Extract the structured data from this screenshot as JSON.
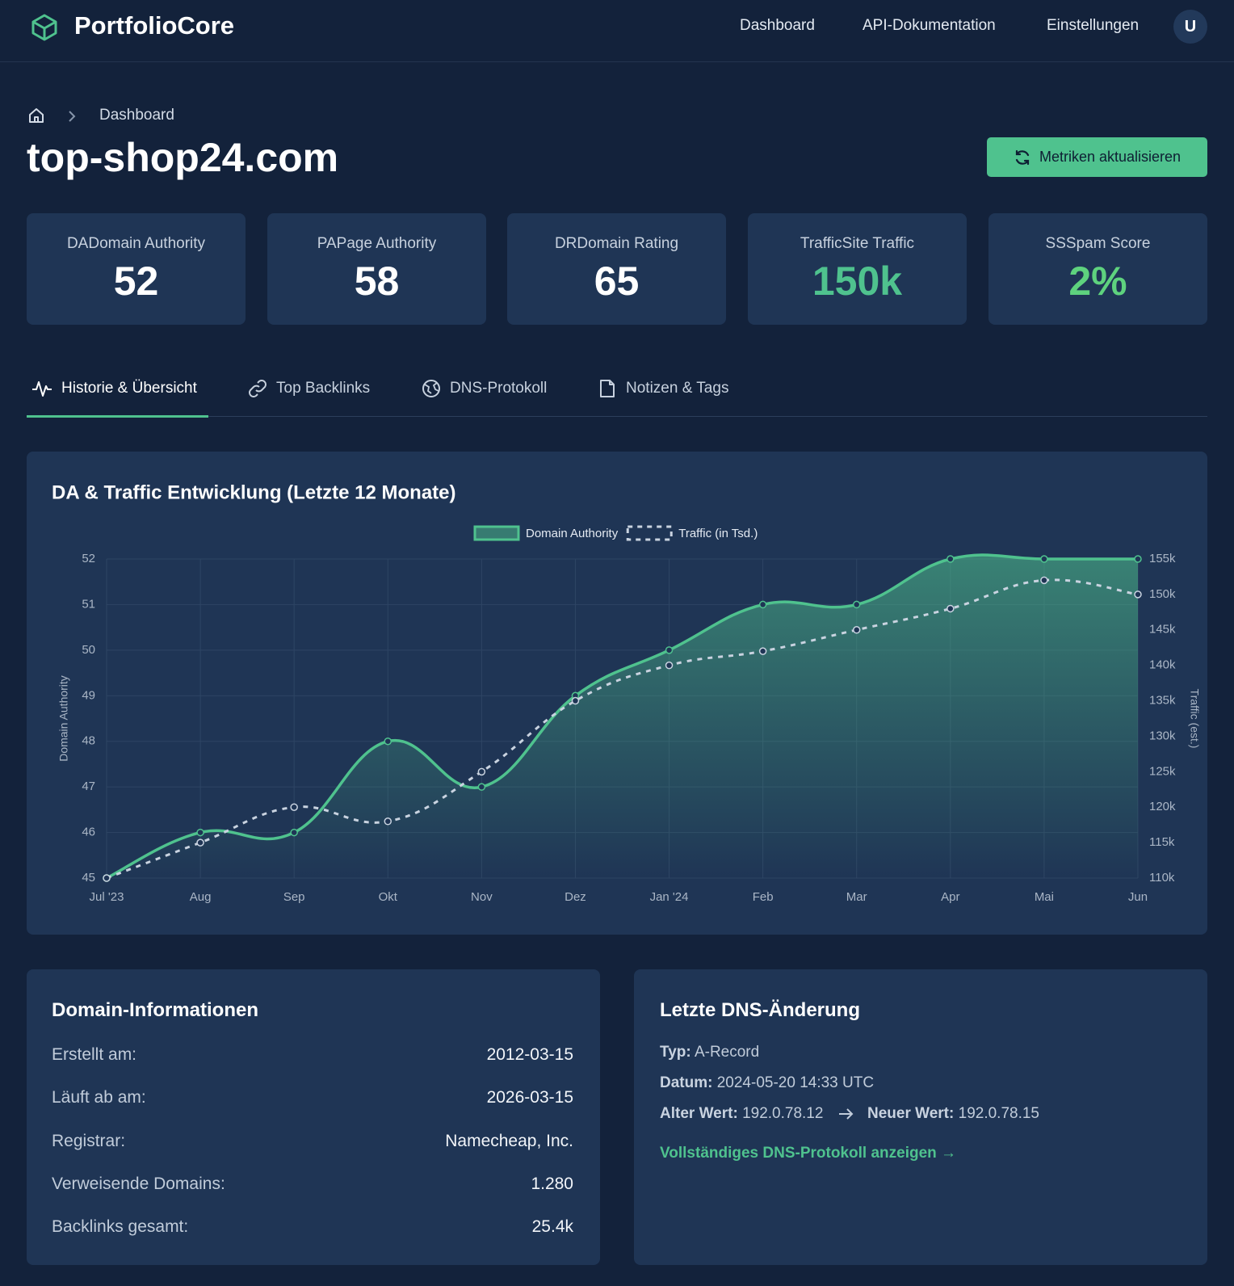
{
  "header": {
    "brand": "PortfolioCore",
    "nav": [
      "Dashboard",
      "API-Dokumentation",
      "Einstellungen"
    ],
    "avatar": "U"
  },
  "breadcrumb": {
    "current": "Dashboard"
  },
  "page": {
    "title": "top-shop24.com",
    "button": "Metriken aktualisieren"
  },
  "stats": [
    {
      "label": "DADomain Authority",
      "value": "52"
    },
    {
      "label": "PAPage Authority",
      "value": "58"
    },
    {
      "label": "DRDomain Rating",
      "value": "65"
    },
    {
      "label": "TrafficSite Traffic",
      "value": "150k"
    },
    {
      "label": "SSSpam Score",
      "value": "2%"
    }
  ],
  "tabs": [
    "Historie & Übersicht",
    "Top Backlinks",
    "DNS-Protokoll",
    "Notizen & Tags"
  ],
  "chart_data": {
    "type": "line",
    "title": "DA & Traffic Entwicklung (Letzte 12 Monate)",
    "categories": [
      "Jul '23",
      "Aug",
      "Sep",
      "Okt",
      "Nov",
      "Dez",
      "Jan '24",
      "Feb",
      "Mar",
      "Apr",
      "Mai",
      "Jun"
    ],
    "series": [
      {
        "name": "Domain Authority",
        "color": "#4fc28e",
        "fill": true,
        "values": [
          45,
          46,
          46,
          48,
          47,
          49,
          50,
          51,
          51,
          52,
          52,
          52
        ]
      },
      {
        "name": "Traffic (in Tsd.)",
        "color": "#c9d3e0",
        "dashed": true,
        "axis": "y2",
        "values": [
          110,
          115,
          120,
          118,
          125,
          135,
          140,
          142,
          145,
          148,
          152,
          150
        ]
      }
    ],
    "ylabel": "Domain Authority",
    "y2label": "Traffic (est.)",
    "ylim": [
      45,
      52
    ],
    "yticks": [
      45,
      46,
      47,
      48,
      49,
      50,
      51,
      52
    ],
    "y2lim": [
      110,
      155
    ],
    "y2ticks": [
      {
        "value": 110,
        "label": "110k"
      },
      {
        "value": 115,
        "label": "115k"
      },
      {
        "value": 120,
        "label": "120k"
      },
      {
        "value": 125,
        "label": "125k"
      },
      {
        "value": 130,
        "label": "130k"
      },
      {
        "value": 135,
        "label": "135k"
      },
      {
        "value": 140,
        "label": "140k"
      },
      {
        "value": 145,
        "label": "145k"
      },
      {
        "value": 150,
        "label": "150k"
      },
      {
        "value": 155,
        "label": "155k"
      }
    ],
    "grid": true,
    "legend": "top"
  },
  "domain_info": {
    "title": "Domain-Informationen",
    "rows": [
      [
        "Erstellt am:",
        "2012-03-15"
      ],
      [
        "Läuft ab am:",
        "2026-03-15"
      ],
      [
        "Registrar:",
        "Namecheap, Inc."
      ],
      [
        "Verweisende Domains:",
        "1.280"
      ],
      [
        "Backlinks gesamt:",
        "25.4k"
      ]
    ]
  },
  "dns": {
    "title": "Letzte DNS-Änderung",
    "type": [
      "Typ:",
      "A-Record"
    ],
    "date": [
      "Datum:",
      "2024-05-20 14:33 UTC"
    ],
    "old": [
      "Alter Wert:",
      "192.0.78.12"
    ],
    "new": [
      "Neuer Wert:",
      "192.0.78.15"
    ],
    "link": "Vollständiges DNS-Protokoll anzeigen →"
  }
}
